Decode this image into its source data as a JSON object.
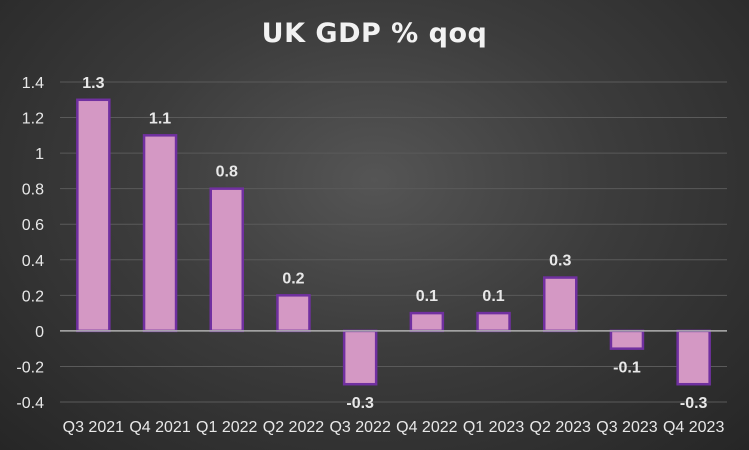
{
  "chart_data": {
    "type": "bar",
    "title": "UK GDP % qoq",
    "xlabel": "",
    "ylabel": "",
    "categories": [
      "Q3 2021",
      "Q4 2021",
      "Q1 2022",
      "Q2 2022",
      "Q3 2022",
      "Q4 2022",
      "Q1 2023",
      "Q2 2023",
      "Q3 2023",
      "Q4 2023"
    ],
    "values": [
      1.3,
      1.1,
      0.8,
      0.2,
      -0.3,
      0.1,
      0.1,
      0.3,
      -0.1,
      -0.3
    ],
    "data_labels": [
      "1.3",
      "1.1",
      "0.8",
      "0.2",
      "-0.3",
      "0.1",
      "0.1",
      "0.3",
      "-0.1",
      "-0.3"
    ],
    "ylim": [
      -0.4,
      1.4
    ],
    "yticks": [
      -0.4,
      -0.2,
      0,
      0.2,
      0.4,
      0.6,
      0.8,
      1,
      1.2,
      1.4
    ],
    "ytick_labels": [
      "-0.4",
      "-0.2",
      "0",
      "0.2",
      "0.4",
      "0.6",
      "0.8",
      "1",
      "1.2",
      "1.4"
    ],
    "grid": true,
    "legend": "none",
    "colors": {
      "bar_fill": "#d498c4",
      "bar_stroke": "#7030a0",
      "text": "#e8e8e8",
      "grid": "#5a5a5a",
      "zero_line": "#b0b0b0"
    }
  }
}
